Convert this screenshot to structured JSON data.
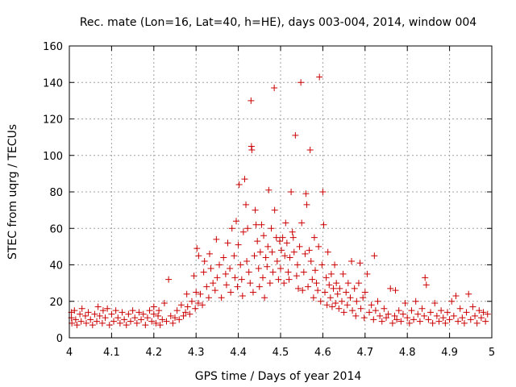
{
  "chart_data": {
    "type": "scatter",
    "title": "Rec. mate (Lon=16, Lat=40, h=HE), days 003-004, 2014, window 004",
    "xlabel": "GPS time / Days of year 2014",
    "ylabel": "STEC from uqrg / TECUs",
    "xlim": [
      4.0,
      5.0
    ],
    "ylim": [
      0,
      160
    ],
    "xticks": [
      4,
      4.1,
      4.2,
      4.3,
      4.4,
      4.5,
      4.6,
      4.7,
      4.8,
      4.9,
      5
    ],
    "xtick_labels": [
      "4",
      "4.1",
      "4.2",
      "4.3",
      "4.4",
      "4.5",
      "4.6",
      "4.7",
      "4.8",
      "4.9",
      "5"
    ],
    "yticks": [
      0,
      20,
      40,
      60,
      80,
      100,
      120,
      140,
      160
    ],
    "ytick_labels": [
      "0",
      "20",
      "40",
      "60",
      "80",
      "100",
      "120",
      "140",
      "160"
    ],
    "grid": true,
    "marker": "+",
    "color": "#cc0000",
    "series": [
      {
        "name": "STEC",
        "points": [
          [
            4.005,
            14
          ],
          [
            4.005,
            11
          ],
          [
            4.006,
            8
          ],
          [
            4.012,
            15
          ],
          [
            4.015,
            10
          ],
          [
            4.018,
            7
          ],
          [
            4.025,
            13
          ],
          [
            4.028,
            9
          ],
          [
            4.03,
            16
          ],
          [
            4.038,
            12
          ],
          [
            4.04,
            8
          ],
          [
            4.045,
            14
          ],
          [
            4.05,
            10
          ],
          [
            4.055,
            7
          ],
          [
            4.06,
            13
          ],
          [
            4.065,
            9
          ],
          [
            4.068,
            17
          ],
          [
            4.072,
            12
          ],
          [
            4.078,
            8
          ],
          [
            4.08,
            15
          ],
          [
            4.085,
            11
          ],
          [
            4.09,
            16
          ],
          [
            4.095,
            7
          ],
          [
            4.1,
            13
          ],
          [
            4.105,
            9
          ],
          [
            4.11,
            15
          ],
          [
            4.115,
            11
          ],
          [
            4.12,
            8
          ],
          [
            4.125,
            14
          ],
          [
            4.13,
            10
          ],
          [
            4.135,
            7
          ],
          [
            4.14,
            13
          ],
          [
            4.145,
            9
          ],
          [
            4.15,
            15
          ],
          [
            4.155,
            11
          ],
          [
            4.16,
            8
          ],
          [
            4.165,
            14
          ],
          [
            4.17,
            10
          ],
          [
            4.175,
            13
          ],
          [
            4.18,
            7
          ],
          [
            4.185,
            11
          ],
          [
            4.19,
            15
          ],
          [
            4.195,
            9
          ],
          [
            4.2,
            13
          ],
          [
            4.2,
            17
          ],
          [
            4.205,
            8
          ],
          [
            4.21,
            12
          ],
          [
            4.212,
            15
          ],
          [
            4.215,
            7
          ],
          [
            4.22,
            10
          ],
          [
            4.225,
            19
          ],
          [
            4.23,
            9
          ],
          [
            4.235,
            32
          ],
          [
            4.24,
            12
          ],
          [
            4.245,
            8
          ],
          [
            4.25,
            11
          ],
          [
            4.255,
            15
          ],
          [
            4.26,
            10
          ],
          [
            4.265,
            18
          ],
          [
            4.27,
            12
          ],
          [
            4.275,
            14
          ],
          [
            4.278,
            24
          ],
          [
            4.28,
            17
          ],
          [
            4.285,
            13
          ],
          [
            4.29,
            20
          ],
          [
            4.295,
            34
          ],
          [
            4.298,
            16
          ],
          [
            4.3,
            25
          ],
          [
            4.302,
            49
          ],
          [
            4.305,
            19
          ],
          [
            4.306,
            45
          ],
          [
            4.31,
            24
          ],
          [
            4.315,
            18
          ],
          [
            4.318,
            36
          ],
          [
            4.32,
            42
          ],
          [
            4.325,
            28
          ],
          [
            4.33,
            22
          ],
          [
            4.332,
            46
          ],
          [
            4.335,
            38
          ],
          [
            4.34,
            30
          ],
          [
            4.345,
            26
          ],
          [
            4.348,
            54
          ],
          [
            4.35,
            33
          ],
          [
            4.355,
            40
          ],
          [
            4.36,
            22
          ],
          [
            4.365,
            44
          ],
          [
            4.37,
            35
          ],
          [
            4.372,
            29
          ],
          [
            4.375,
            52
          ],
          [
            4.38,
            38
          ],
          [
            4.382,
            25
          ],
          [
            4.385,
            60
          ],
          [
            4.39,
            45
          ],
          [
            4.392,
            33
          ],
          [
            4.395,
            64
          ],
          [
            4.398,
            28
          ],
          [
            4.4,
            51
          ],
          [
            4.402,
            84
          ],
          [
            4.405,
            40
          ],
          [
            4.408,
            32
          ],
          [
            4.41,
            23
          ],
          [
            4.412,
            58
          ],
          [
            4.415,
            87
          ],
          [
            4.418,
            73
          ],
          [
            4.42,
            42
          ],
          [
            4.422,
            60
          ],
          [
            4.425,
            36
          ],
          [
            4.428,
            30
          ],
          [
            4.43,
            130
          ],
          [
            4.431,
            105
          ],
          [
            4.432,
            103
          ],
          [
            4.435,
            25
          ],
          [
            4.438,
            45
          ],
          [
            4.44,
            70
          ],
          [
            4.442,
            62
          ],
          [
            4.445,
            53
          ],
          [
            4.448,
            38
          ],
          [
            4.45,
            28
          ],
          [
            4.452,
            47
          ],
          [
            4.455,
            62
          ],
          [
            4.458,
            33
          ],
          [
            4.46,
            56
          ],
          [
            4.462,
            22
          ],
          [
            4.465,
            44
          ],
          [
            4.468,
            39
          ],
          [
            4.47,
            50
          ],
          [
            4.472,
            81
          ],
          [
            4.475,
            30
          ],
          [
            4.478,
            60
          ],
          [
            4.48,
            47
          ],
          [
            4.482,
            36
          ],
          [
            4.485,
            137
          ],
          [
            4.486,
            70
          ],
          [
            4.49,
            55
          ],
          [
            4.492,
            42
          ],
          [
            4.495,
            32
          ],
          [
            4.498,
            53
          ],
          [
            4.5,
            38
          ],
          [
            4.502,
            48
          ],
          [
            4.505,
            55
          ],
          [
            4.508,
            30
          ],
          [
            4.51,
            45
          ],
          [
            4.512,
            63
          ],
          [
            4.515,
            52
          ],
          [
            4.518,
            36
          ],
          [
            4.52,
            32
          ],
          [
            4.522,
            44
          ],
          [
            4.525,
            80
          ],
          [
            4.528,
            58
          ],
          [
            4.53,
            55
          ],
          [
            4.532,
            47
          ],
          [
            4.535,
            111
          ],
          [
            4.538,
            34
          ],
          [
            4.54,
            40
          ],
          [
            4.542,
            27
          ],
          [
            4.545,
            50
          ],
          [
            4.548,
            140
          ],
          [
            4.55,
            63
          ],
          [
            4.552,
            26
          ],
          [
            4.555,
            36
          ],
          [
            4.558,
            46
          ],
          [
            4.56,
            79
          ],
          [
            4.562,
            73
          ],
          [
            4.565,
            28
          ],
          [
            4.568,
            48
          ],
          [
            4.57,
            103
          ],
          [
            4.572,
            42
          ],
          [
            4.575,
            32
          ],
          [
            4.578,
            22
          ],
          [
            4.58,
            55
          ],
          [
            4.582,
            37
          ],
          [
            4.585,
            30
          ],
          [
            4.588,
            26
          ],
          [
            4.59,
            50
          ],
          [
            4.592,
            143
          ],
          [
            4.595,
            20
          ],
          [
            4.598,
            40
          ],
          [
            4.6,
            80
          ],
          [
            4.602,
            62
          ],
          [
            4.605,
            25
          ],
          [
            4.608,
            33
          ],
          [
            4.61,
            18
          ],
          [
            4.612,
            47
          ],
          [
            4.615,
            29
          ],
          [
            4.618,
            22
          ],
          [
            4.62,
            35
          ],
          [
            4.622,
            17
          ],
          [
            4.625,
            27
          ],
          [
            4.628,
            40
          ],
          [
            4.63,
            19
          ],
          [
            4.632,
            30
          ],
          [
            4.635,
            24
          ],
          [
            4.638,
            16
          ],
          [
            4.64,
            27
          ],
          [
            4.645,
            20
          ],
          [
            4.648,
            35
          ],
          [
            4.65,
            14
          ],
          [
            4.655,
            25
          ],
          [
            4.658,
            18
          ],
          [
            4.66,
            30
          ],
          [
            4.665,
            22
          ],
          [
            4.668,
            42
          ],
          [
            4.67,
            15
          ],
          [
            4.675,
            27
          ],
          [
            4.678,
            12
          ],
          [
            4.68,
            20
          ],
          [
            4.685,
            30
          ],
          [
            4.688,
            41
          ],
          [
            4.69,
            16
          ],
          [
            4.695,
            22
          ],
          [
            4.698,
            11
          ],
          [
            4.7,
            25
          ],
          [
            4.705,
            35
          ],
          [
            4.71,
            14
          ],
          [
            4.715,
            18
          ],
          [
            4.72,
            10
          ],
          [
            4.722,
            45
          ],
          [
            4.725,
            15
          ],
          [
            4.73,
            20
          ],
          [
            4.735,
            12
          ],
          [
            4.74,
            9
          ],
          [
            4.745,
            16
          ],
          [
            4.75,
            11
          ],
          [
            4.755,
            13
          ],
          [
            4.76,
            27
          ],
          [
            4.765,
            8
          ],
          [
            4.77,
            12
          ],
          [
            4.772,
            26
          ],
          [
            4.775,
            10
          ],
          [
            4.78,
            15
          ],
          [
            4.785,
            9
          ],
          [
            4.79,
            13
          ],
          [
            4.795,
            19
          ],
          [
            4.8,
            11
          ],
          [
            4.805,
            8
          ],
          [
            4.81,
            15
          ],
          [
            4.815,
            10
          ],
          [
            4.82,
            20
          ],
          [
            4.825,
            13
          ],
          [
            4.83,
            9
          ],
          [
            4.835,
            16
          ],
          [
            4.84,
            12
          ],
          [
            4.842,
            33
          ],
          [
            4.845,
            29
          ],
          [
            4.85,
            10
          ],
          [
            4.855,
            14
          ],
          [
            4.86,
            8
          ],
          [
            4.865,
            19
          ],
          [
            4.87,
            12
          ],
          [
            4.875,
            9
          ],
          [
            4.88,
            15
          ],
          [
            4.885,
            11
          ],
          [
            4.89,
            8
          ],
          [
            4.895,
            14
          ],
          [
            4.9,
            10
          ],
          [
            4.905,
            20
          ],
          [
            4.91,
            12
          ],
          [
            4.915,
            23
          ],
          [
            4.92,
            9
          ],
          [
            4.925,
            16
          ],
          [
            4.93,
            11
          ],
          [
            4.935,
            8
          ],
          [
            4.94,
            14
          ],
          [
            4.945,
            24
          ],
          [
            4.95,
            10
          ],
          [
            4.955,
            17
          ],
          [
            4.96,
            12
          ],
          [
            4.965,
            8
          ],
          [
            4.97,
            15
          ],
          [
            4.975,
            11
          ],
          [
            4.98,
            14
          ],
          [
            4.985,
            9
          ],
          [
            4.99,
            13
          ]
        ]
      }
    ]
  }
}
